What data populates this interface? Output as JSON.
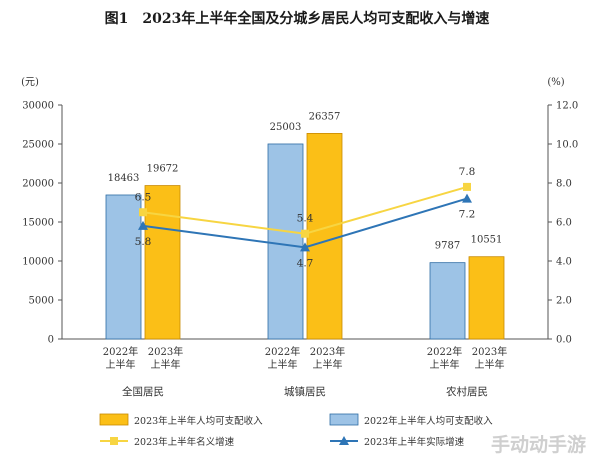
{
  "title": "图1　2023年上半年全国及分城乡居民人均可支配收入与增速",
  "watermark": "手动动手游",
  "chart_data": {
    "type": "bar",
    "categories": [
      "全国居民",
      "城镇居民",
      "农村居民"
    ],
    "x_sublabels": [
      "2022年\n上半年",
      "2023年\n上半年"
    ],
    "series": [
      {
        "name": "2022年上半年人均可支配收入",
        "type": "bar",
        "axis": "left",
        "color": "#9dc3e6",
        "values": [
          18463,
          25003,
          9787
        ]
      },
      {
        "name": "2023年上半年人均可支配收入",
        "type": "bar",
        "axis": "left",
        "color": "#fbbf17",
        "values": [
          19672,
          26357,
          10551
        ]
      },
      {
        "name": "2023年上半年名义增速",
        "type": "line",
        "axis": "right",
        "color": "#f7d542",
        "values": [
          6.5,
          5.4,
          7.8
        ]
      },
      {
        "name": "2023年上半年实际增速",
        "type": "line",
        "axis": "right",
        "color": "#2e75b6",
        "values": [
          5.8,
          4.7,
          7.2
        ]
      }
    ],
    "left_axis": {
      "unit": "(元)",
      "ticks": [
        "30000",
        "25000",
        "20000",
        "15000",
        "10000",
        "5000",
        "0"
      ],
      "range": [
        0,
        30000
      ]
    },
    "right_axis": {
      "unit": "(%)",
      "ticks": [
        "12.0",
        "10.0",
        "8.0",
        "6.0",
        "4.0",
        "2.0",
        "0.0"
      ],
      "range": [
        0,
        12
      ]
    },
    "bar_labels": {
      "s0": [
        "18463",
        "25003",
        "9787"
      ],
      "s1": [
        "19672",
        "26357",
        "10551"
      ]
    },
    "line_labels": {
      "nominal": [
        "6.5",
        "5.4",
        "7.8"
      ],
      "real": [
        "5.8",
        "4.7",
        "7.2"
      ]
    },
    "legend": [
      "2023年上半年人均可支配收入",
      "2022年上半年人均可支配收入",
      "2023年上半年名义增速",
      "2023年上半年实际增速"
    ],
    "grid": false
  }
}
